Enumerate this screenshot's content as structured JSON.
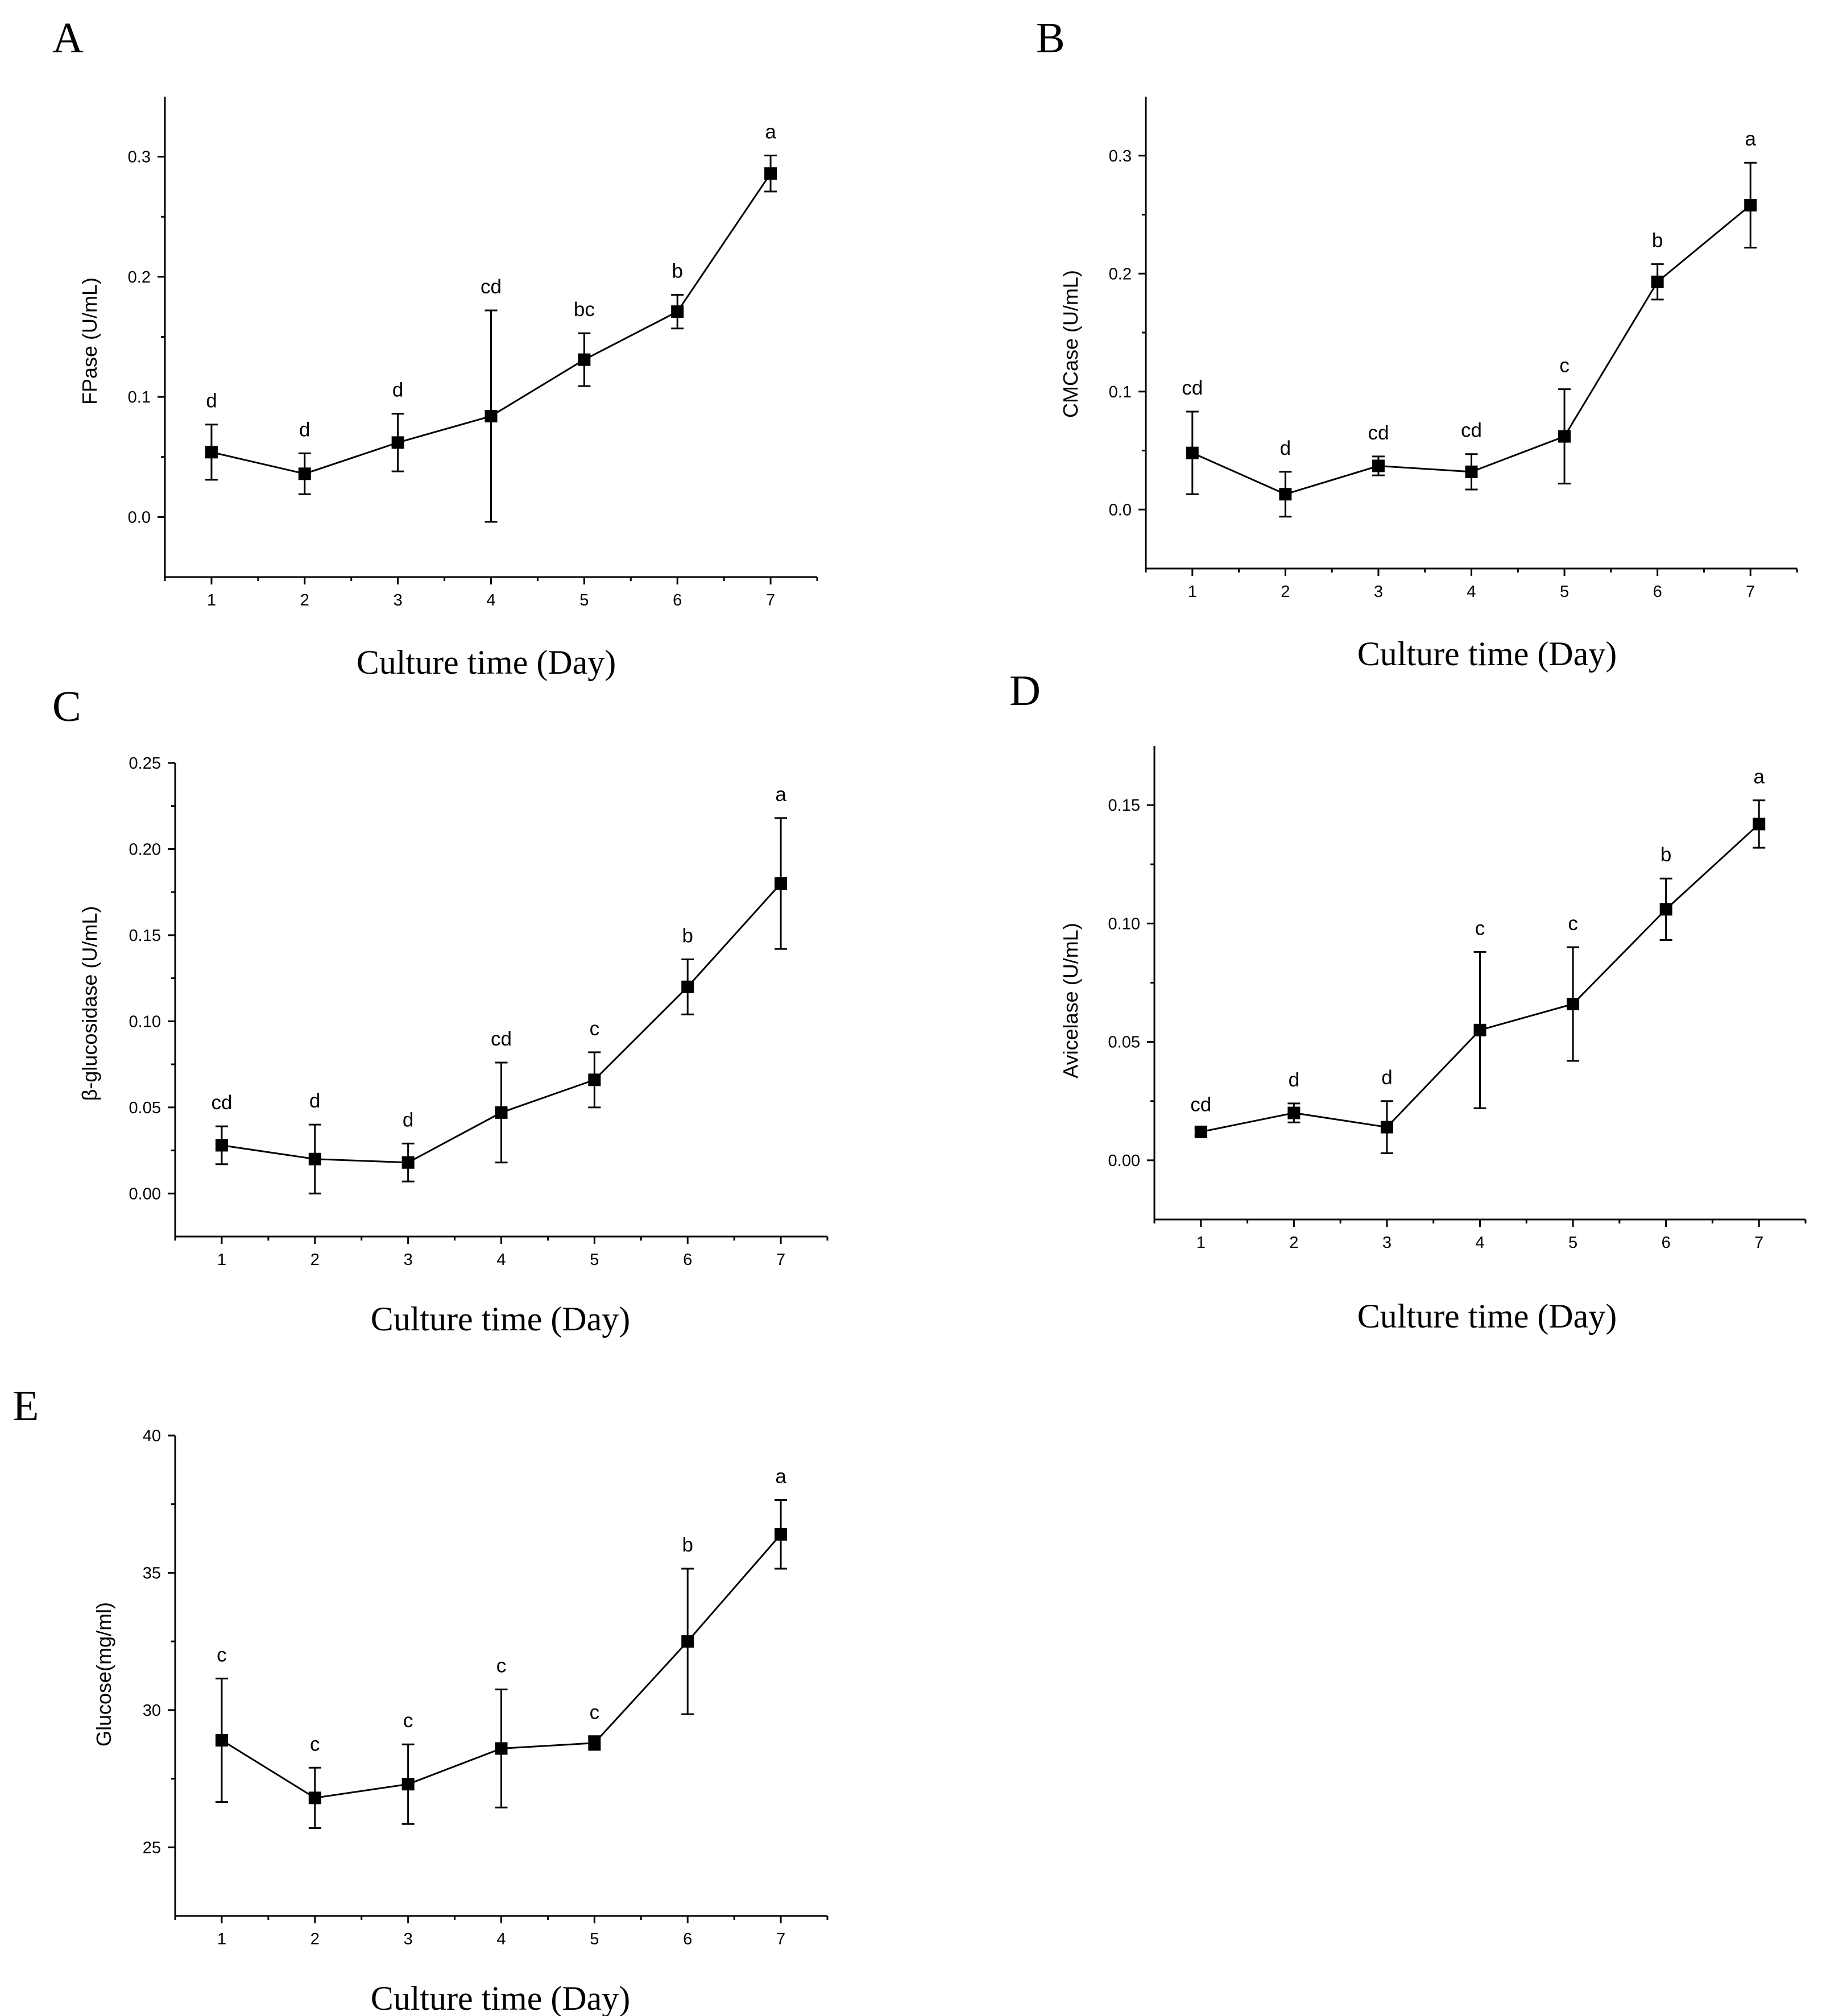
{
  "chart_data": [
    {
      "panel": "A",
      "type": "line",
      "xlabel": "Culture time (Day)",
      "ylabel": "FPase (U/mL)",
      "x": [
        1,
        2,
        3,
        4,
        5,
        6,
        7
      ],
      "values": [
        0.054,
        0.036,
        0.062,
        0.084,
        0.131,
        0.171,
        0.286
      ],
      "errors": [
        0.023,
        0.017,
        0.024,
        0.088,
        0.022,
        0.014,
        0.015
      ],
      "letters": [
        "d",
        "d",
        "d",
        "cd",
        "bc",
        "b",
        "a"
      ],
      "ylim": [
        -0.05,
        0.35
      ],
      "yticks": [
        0.0,
        0.1,
        0.2,
        0.3
      ],
      "ytick_labels": [
        "0.0",
        "0.1",
        "0.2",
        "0.3"
      ],
      "xlim": [
        0.5,
        7.5
      ]
    },
    {
      "panel": "B",
      "type": "line",
      "xlabel": "Culture time (Day)",
      "ylabel": "CMCase (U/mL)",
      "x": [
        1,
        2,
        3,
        4,
        5,
        6,
        7
      ],
      "values": [
        0.048,
        0.013,
        0.037,
        0.032,
        0.062,
        0.193,
        0.258
      ],
      "errors": [
        0.035,
        0.019,
        0.008,
        0.015,
        0.04,
        0.015,
        0.036
      ],
      "letters": [
        "cd",
        "d",
        "cd",
        "cd",
        "c",
        "b",
        "a"
      ],
      "ylim": [
        -0.05,
        0.35
      ],
      "yticks": [
        0.0,
        0.1,
        0.2,
        0.3
      ],
      "ytick_labels": [
        "0.0",
        "0.1",
        "0.2",
        "0.3"
      ],
      "xlim": [
        0.5,
        7.5
      ]
    },
    {
      "panel": "C",
      "type": "line",
      "xlabel": "Culture time (Day)",
      "ylabel": "β-glucosidase (U/mL)",
      "x": [
        1,
        2,
        3,
        4,
        5,
        6,
        7
      ],
      "values": [
        0.028,
        0.02,
        0.018,
        0.047,
        0.066,
        0.12,
        0.18
      ],
      "errors": [
        0.011,
        0.02,
        0.011,
        0.029,
        0.016,
        0.016,
        0.038
      ],
      "letters": [
        "cd",
        "d",
        "d",
        "cd",
        "c",
        "b",
        "a"
      ],
      "ylim": [
        -0.025,
        0.25
      ],
      "yticks": [
        0.0,
        0.05,
        0.1,
        0.15,
        0.2,
        0.25
      ],
      "ytick_labels": [
        "0.00",
        "0.05",
        "0.10",
        "0.15",
        "0.20",
        "0.25"
      ],
      "xlim": [
        0.5,
        7.5
      ]
    },
    {
      "panel": "D",
      "type": "line",
      "xlabel": "Culture time (Day)",
      "ylabel": "Avicelase (U/mL)",
      "x": [
        1,
        2,
        3,
        4,
        5,
        6,
        7
      ],
      "values": [
        0.012,
        0.02,
        0.014,
        0.055,
        0.066,
        0.106,
        0.142
      ],
      "errors": [
        0.0015,
        0.004,
        0.011,
        0.033,
        0.024,
        0.013,
        0.01
      ],
      "letters": [
        "cd",
        "d",
        "d",
        "c",
        "c",
        "b",
        "a"
      ],
      "ylim": [
        -0.025,
        0.175
      ],
      "yticks": [
        0.0,
        0.05,
        0.1,
        0.15
      ],
      "ytick_labels": [
        "0.00",
        "0.05",
        "0.10",
        "0.15"
      ],
      "xlim": [
        0.5,
        7.5
      ]
    },
    {
      "panel": "E",
      "type": "line",
      "xlabel": "Culture time (Day)",
      "ylabel": "Glucose(mg/ml)",
      "x": [
        1,
        2,
        3,
        4,
        5,
        6,
        7
      ],
      "values": [
        28.9,
        26.8,
        27.3,
        28.6,
        28.8,
        32.5,
        36.4
      ],
      "errors": [
        2.25,
        1.1,
        1.45,
        2.15,
        0.25,
        2.65,
        1.25
      ],
      "letters": [
        "c",
        "c",
        "c",
        "c",
        "c",
        "b",
        "a"
      ],
      "ylim": [
        22.5,
        40
      ],
      "yticks": [
        25,
        30,
        35,
        40
      ],
      "ytick_labels": [
        "25",
        "30",
        "35",
        "40"
      ],
      "xlim": [
        0.5,
        7.5
      ]
    }
  ]
}
